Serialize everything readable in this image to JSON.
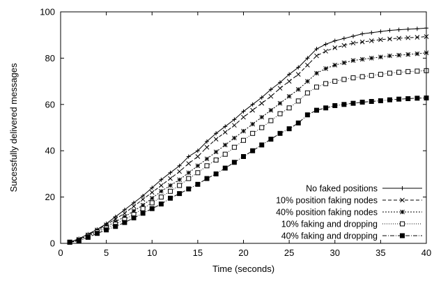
{
  "chart_data": {
    "type": "line",
    "xlabel": "Time (seconds)",
    "ylabel": "Sucessfully delivered messages",
    "xlim": [
      0,
      40
    ],
    "ylim": [
      0,
      100
    ],
    "xticks": [
      0,
      5,
      10,
      15,
      20,
      25,
      30,
      35,
      40
    ],
    "yticks": [
      0,
      20,
      40,
      60,
      80,
      100
    ],
    "grid": false,
    "legend_position": "bottom-right",
    "x": [
      1,
      2,
      3,
      4,
      5,
      6,
      7,
      8,
      9,
      10,
      11,
      12,
      13,
      14,
      15,
      16,
      17,
      18,
      19,
      20,
      21,
      22,
      23,
      24,
      25,
      26,
      27,
      28,
      29,
      30,
      31,
      32,
      33,
      34,
      35,
      36,
      37,
      38,
      39,
      40
    ],
    "series": [
      {
        "name": "No faked positions",
        "marker": "plus",
        "dash": "",
        "values": [
          0.5,
          2.0,
          4.0,
          6.0,
          8.5,
          11.5,
          14.5,
          17.5,
          20.5,
          24.0,
          27.5,
          30.5,
          33.5,
          37.5,
          40.0,
          44.0,
          47.5,
          50.5,
          53.5,
          57.0,
          60.0,
          63.0,
          66.5,
          69.5,
          73.0,
          76.0,
          80.0,
          84.0,
          86.0,
          87.5,
          88.5,
          89.5,
          90.5,
          91.0,
          91.5,
          92.0,
          92.3,
          92.5,
          92.7,
          93.0
        ]
      },
      {
        "name": "10% position faking nodes",
        "marker": "x",
        "dash": "5,3",
        "values": [
          0.5,
          1.8,
          3.7,
          5.8,
          8.0,
          10.5,
          13.0,
          16.0,
          19.0,
          22.0,
          25.0,
          28.0,
          31.0,
          34.5,
          37.5,
          41.5,
          45.0,
          48.0,
          51.0,
          54.5,
          57.5,
          60.5,
          63.5,
          67.0,
          70.0,
          73.0,
          77.0,
          81.0,
          83.0,
          84.5,
          85.5,
          86.5,
          87.0,
          87.5,
          88.0,
          88.3,
          88.6,
          88.8,
          89.0,
          89.3
        ]
      },
      {
        "name": "40% position faking nodes",
        "marker": "star",
        "dash": "2,2",
        "values": [
          0.5,
          1.5,
          3.3,
          5.3,
          7.3,
          9.3,
          11.5,
          14.0,
          16.5,
          19.5,
          22.5,
          25.0,
          27.5,
          30.5,
          33.5,
          36.5,
          39.5,
          42.5,
          45.5,
          48.5,
          51.5,
          54.5,
          57.5,
          60.5,
          63.5,
          66.5,
          70.0,
          73.5,
          75.5,
          77.0,
          78.0,
          79.0,
          79.5,
          80.0,
          80.5,
          81.0,
          81.3,
          81.6,
          81.9,
          82.3
        ]
      },
      {
        "name": "10% faking and dropping",
        "marker": "open-square",
        "dash": "1,2",
        "values": [
          0.5,
          1.3,
          3.0,
          4.9,
          6.6,
          8.3,
          10.3,
          12.5,
          15.0,
          17.5,
          20.0,
          22.5,
          25.0,
          28.0,
          30.5,
          33.5,
          36.0,
          38.5,
          41.5,
          44.5,
          47.5,
          50.0,
          53.0,
          56.0,
          58.5,
          61.5,
          65.0,
          67.5,
          69.0,
          70.0,
          70.8,
          71.5,
          72.0,
          72.5,
          73.0,
          73.5,
          73.9,
          74.2,
          74.4,
          74.6
        ]
      },
      {
        "name": "40% faking and dropping",
        "marker": "filled-square",
        "dash": "6,2,1,2",
        "values": [
          0.5,
          1.0,
          2.6,
          4.3,
          5.8,
          7.3,
          9.0,
          11.0,
          13.0,
          15.0,
          17.0,
          19.5,
          21.5,
          23.5,
          25.5,
          28.0,
          30.0,
          32.5,
          35.0,
          37.5,
          40.0,
          42.5,
          45.0,
          47.5,
          49.5,
          52.0,
          55.5,
          57.5,
          58.5,
          59.5,
          60.0,
          60.5,
          61.0,
          61.3,
          61.6,
          62.0,
          62.3,
          62.5,
          62.7,
          62.8
        ]
      }
    ]
  }
}
